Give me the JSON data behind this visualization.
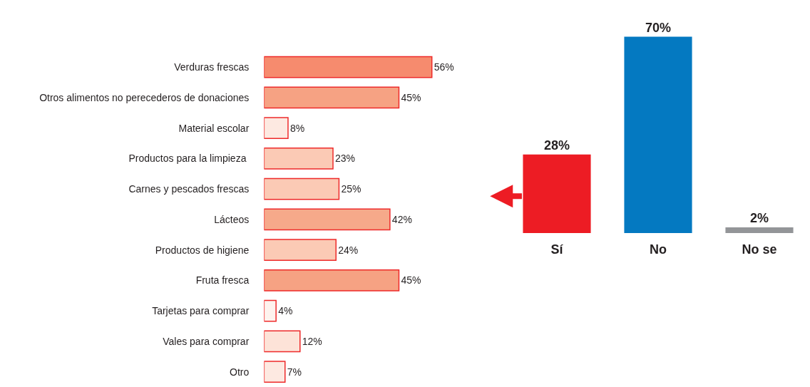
{
  "chart_data": [
    {
      "type": "bar",
      "orientation": "horizontal",
      "categories": [
        "Verduras frescas",
        "Otros alimentos no perecederos de donaciones",
        "Material escolar",
        "Productos para la limpieza ",
        "Carnes y pescados frescas",
        "Lácteos",
        "Productos de higiene",
        "Fruta fresca",
        "Tarjetas para comprar",
        "Vales para comprar",
        "Otro"
      ],
      "values": [
        56,
        45,
        8,
        23,
        25,
        42,
        24,
        45,
        4,
        12,
        7
      ],
      "value_labels": [
        "56%",
        "45%",
        "8%",
        "23%",
        "25%",
        "42%",
        "24%",
        "45%",
        "4%",
        "12%",
        "7%"
      ],
      "colors": [
        "#f68b6e",
        "#f6a283",
        "#fde9e1",
        "#fbcab5",
        "#fbcab5",
        "#f6a98a",
        "#fbcab5",
        "#f6a283",
        "#fef3ee",
        "#fde3d8",
        "#fde9e1"
      ],
      "tick_labels": "y"
    },
    {
      "type": "bar",
      "categories": [
        "Sí",
        "No",
        "No se"
      ],
      "values": [
        28,
        70,
        2
      ],
      "value_labels": [
        "28%",
        "70%",
        "2%"
      ],
      "colors": [
        "#ed1c24",
        "#0479c1",
        "#939598"
      ],
      "tick_labels": "x"
    }
  ]
}
